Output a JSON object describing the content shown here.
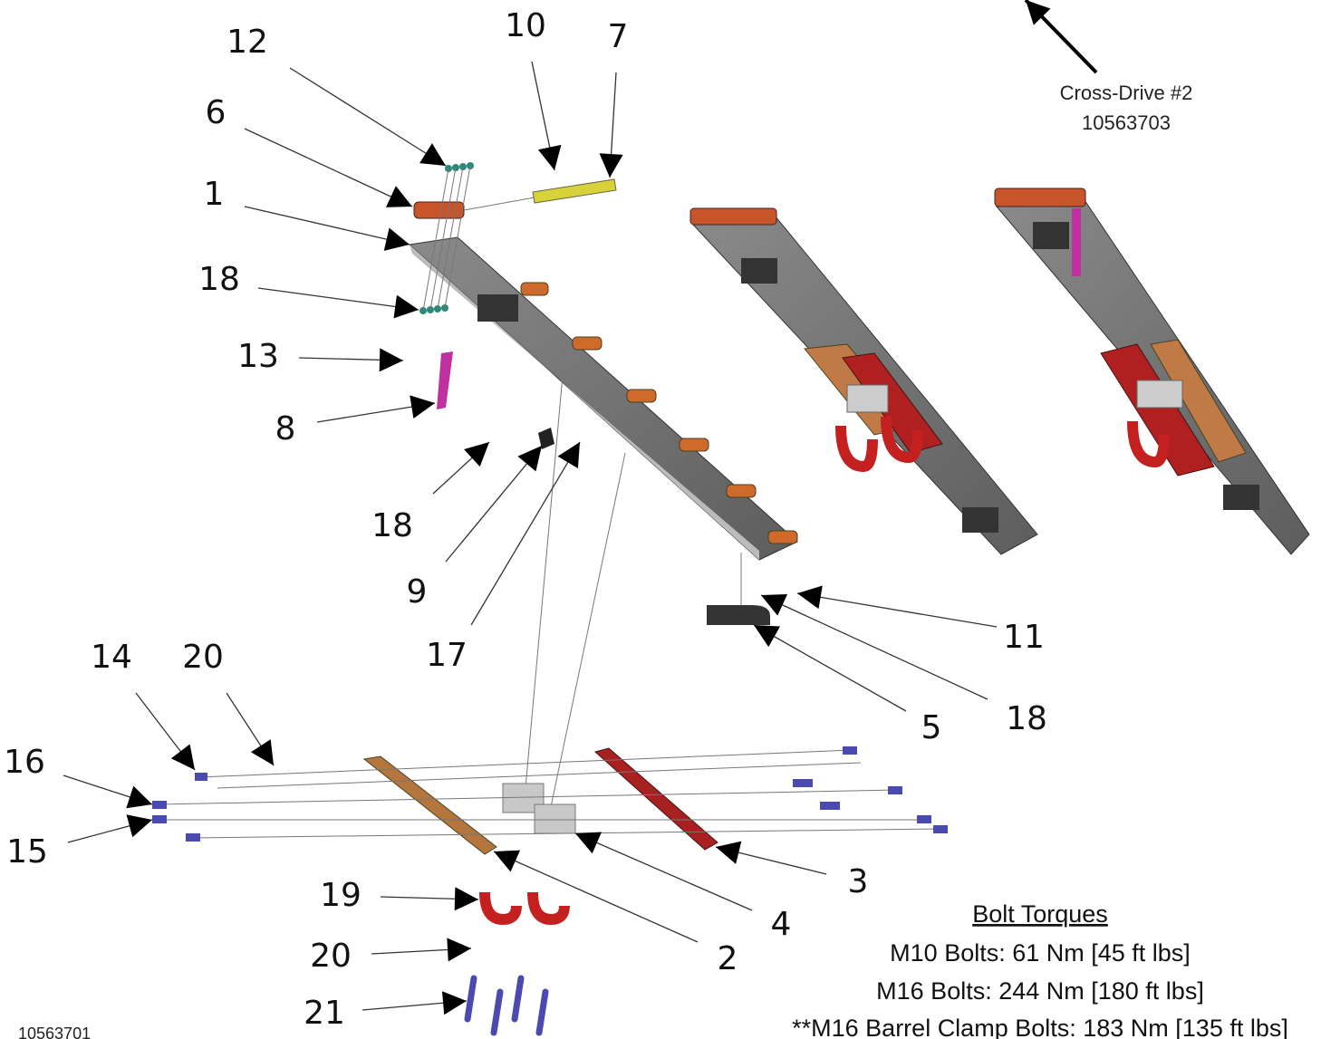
{
  "callouts": [
    "12",
    "10",
    "7",
    "6",
    "1",
    "18",
    "13",
    "8",
    "18",
    "9",
    "17",
    "14",
    "20",
    "16",
    "15",
    "11",
    "18",
    "5",
    "3",
    "4",
    "2",
    "19",
    "20",
    "21"
  ],
  "cross_drive": {
    "name": "Cross-Drive #2",
    "part_number": "10563703"
  },
  "torques": {
    "title": "Bolt Torques",
    "lines": [
      "M10 Bolts: 61 Nm [45 ft lbs]",
      "M16 Bolts: 244 Nm [180 ft lbs]",
      "**M16 Barrel Clamp Bolts: 183 Nm [135 ft lbs]"
    ]
  },
  "drawing_number": "10563701"
}
